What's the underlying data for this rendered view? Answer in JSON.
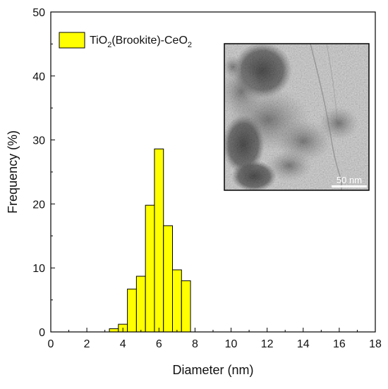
{
  "chart_data": {
    "type": "bar",
    "xlabel": "Diameter (nm)",
    "ylabel": "Frequency (%)",
    "xlim": [
      0,
      18
    ],
    "ylim": [
      0,
      50
    ],
    "x_ticks": [
      "0",
      "2",
      "4",
      "6",
      "8",
      "10",
      "12",
      "14",
      "16",
      "18"
    ],
    "y_ticks": [
      "0",
      "10",
      "20",
      "30",
      "40",
      "50"
    ],
    "bin_width": 0.5,
    "bin_centers": [
      3.5,
      4.0,
      4.5,
      5.0,
      5.5,
      6.0,
      6.5,
      7.0,
      7.5
    ],
    "values": [
      0.5,
      1.2,
      6.7,
      8.7,
      19.8,
      28.6,
      16.6,
      9.7,
      8.0
    ],
    "bar_color": "#ffff00",
    "series": [
      {
        "name_prefix": "TiO",
        "name_sub1": "2",
        "name_mid": "(Brookite)-CeO",
        "name_sub2": "2"
      }
    ],
    "legend_position": "top-left",
    "grid": false,
    "inset": {
      "type": "TEM micrograph",
      "scale_bar_label": "50 nm",
      "position": "top-right"
    }
  }
}
